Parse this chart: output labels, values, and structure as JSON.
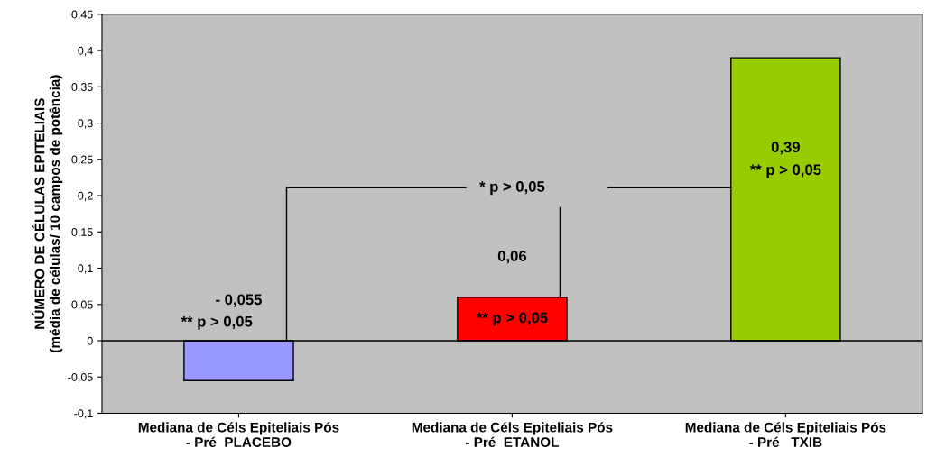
{
  "chart_data": {
    "type": "bar",
    "ylabel": "NÚMERO DE CÉLULAS EPITELIAIS\n(média de células/ 10 campos de potência)",
    "categories": [
      "Mediana de Céls Epiteliais Pós\n- Pré  PLACEBO",
      "Mediana de Céls Epiteliais Pós\n- Pré  ETANOL",
      "Mediana de Céls Epiteliais Pós\n- Pré   TXIB"
    ],
    "values": [
      -0.055,
      0.06,
      0.39
    ],
    "colors": [
      "#9999ff",
      "#ff0000",
      "#99cc00"
    ],
    "value_labels": [
      "- 0,055",
      "0,06",
      "0,39"
    ],
    "ylim": [
      -0.1,
      0.45
    ],
    "yticks": [
      {
        "value": -0.1,
        "label": "-0,1"
      },
      {
        "value": -0.05,
        "label": "-0,05"
      },
      0,
      {
        "value": 0.05,
        "label": "0,05"
      },
      {
        "value": 0.1,
        "label": "0,1"
      },
      {
        "value": 0.15,
        "label": "0,15"
      },
      {
        "value": 0.2,
        "label": "0,2"
      },
      {
        "value": 0.25,
        "label": "0,25"
      },
      {
        "value": 0.3,
        "label": "0,3"
      },
      {
        "value": 0.35,
        "label": "0,35"
      },
      {
        "value": 0.4,
        "label": "0,4"
      },
      {
        "value": 0.45,
        "label": "0,45"
      }
    ],
    "annotations": [
      "** p > 0,05",
      "** p > 0,05",
      "** p > 0,05",
      "* p > 0,05"
    ]
  }
}
